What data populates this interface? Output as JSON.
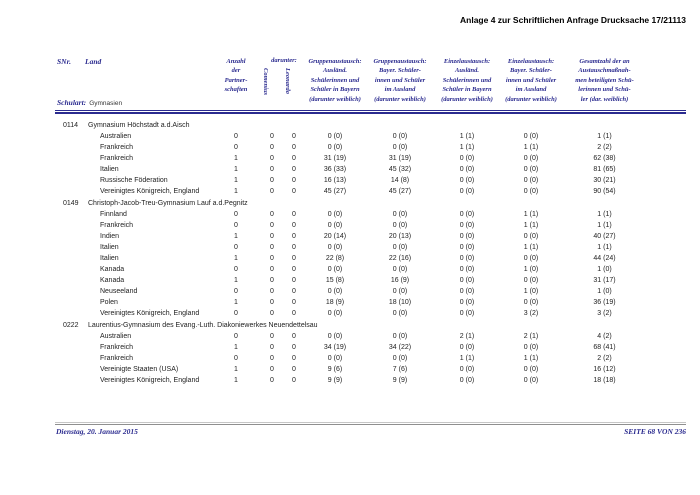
{
  "page": {
    "title": "Anlage 4 zur Schriftlichen Anfrage Drucksache 17/21113",
    "footer_left": "Dienstag, 20. Januar 2015",
    "footer_right": "SEITE 68 VON 236"
  },
  "colors": {
    "accent_navy": "#2b2b8f",
    "text": "#222222",
    "background": "#ffffff"
  },
  "table": {
    "schulart_label": "Schulart:",
    "schulart_value": "Gymnasien",
    "columns": {
      "snr": "SNr.",
      "land": "Land",
      "anzahl": "Anzahl\nder\nPartner-\nschaften",
      "darunter": "darunter:",
      "comenius": "Comenius",
      "leonardo": "Leonardo",
      "gruppe_bayern": "Gruppenaustausch:\nAusländ.\nSchülerinnen und\nSchüler in Bayern\n(darunter weiblich)",
      "gruppe_ausland": "Gruppenaustausch:\nBayer. Schüler-\ninnen und Schüler\nim Ausland\n(darunter weiblich)",
      "einzel_bayern": "Einzelaustausch:\nAusländ.\nSchülerinnen und\nSchüler in Bayern\n(darunter weiblich)",
      "einzel_ausland": "Einzelaustausch:\nBayer. Schüler-\ninnen und Schüler\nim Ausland\n(darunter weiblich)",
      "gesamt": "Gesamtzahl der an\nAustauschmaßnah-\nmen beteiligten Schü-\nlerinnen und Schü-\nler (dar. weiblich)"
    },
    "schools": [
      {
        "snr": "0114",
        "name": "Gymnasium Höchstadt a.d.Aisch",
        "rows": [
          [
            "Australien",
            "0",
            "0",
            "0",
            "0 (0)",
            "0 (0)",
            "1 (1)",
            "0 (0)",
            "1 (1)"
          ],
          [
            "Frankreich",
            "0",
            "0",
            "0",
            "0 (0)",
            "0 (0)",
            "1 (1)",
            "1 (1)",
            "2 (2)"
          ],
          [
            "Frankreich",
            "1",
            "0",
            "0",
            "31 (19)",
            "31 (19)",
            "0 (0)",
            "0 (0)",
            "62 (38)"
          ],
          [
            "Italien",
            "1",
            "0",
            "0",
            "36 (33)",
            "45 (32)",
            "0 (0)",
            "0 (0)",
            "81 (65)"
          ],
          [
            "Russische Föderation",
            "1",
            "0",
            "0",
            "16 (13)",
            "14 (8)",
            "0 (0)",
            "0 (0)",
            "30 (21)"
          ],
          [
            "Vereinigtes Königreich, England",
            "1",
            "0",
            "0",
            "45 (27)",
            "45 (27)",
            "0 (0)",
            "0 (0)",
            "90 (54)"
          ]
        ]
      },
      {
        "snr": "0149",
        "name": "Christoph-Jacob-Treu-Gymnasium Lauf a.d.Pegnitz",
        "rows": [
          [
            "Finnland",
            "0",
            "0",
            "0",
            "0 (0)",
            "0 (0)",
            "0 (0)",
            "1 (1)",
            "1 (1)"
          ],
          [
            "Frankreich",
            "0",
            "0",
            "0",
            "0 (0)",
            "0 (0)",
            "0 (0)",
            "1 (1)",
            "1 (1)"
          ],
          [
            "Indien",
            "1",
            "0",
            "0",
            "20 (14)",
            "20 (13)",
            "0 (0)",
            "0 (0)",
            "40 (27)"
          ],
          [
            "Italien",
            "0",
            "0",
            "0",
            "0 (0)",
            "0 (0)",
            "0 (0)",
            "1 (1)",
            "1 (1)"
          ],
          [
            "Italien",
            "1",
            "0",
            "0",
            "22 (8)",
            "22 (16)",
            "0 (0)",
            "0 (0)",
            "44 (24)"
          ],
          [
            "Kanada",
            "0",
            "0",
            "0",
            "0 (0)",
            "0 (0)",
            "0 (0)",
            "1 (0)",
            "1 (0)"
          ],
          [
            "Kanada",
            "1",
            "0",
            "0",
            "15 (8)",
            "16 (9)",
            "0 (0)",
            "0 (0)",
            "31 (17)"
          ],
          [
            "Neuseeland",
            "0",
            "0",
            "0",
            "0 (0)",
            "0 (0)",
            "0 (0)",
            "1 (0)",
            "1 (0)"
          ],
          [
            "Polen",
            "1",
            "0",
            "0",
            "18 (9)",
            "18 (10)",
            "0 (0)",
            "0 (0)",
            "36 (19)"
          ],
          [
            "Vereinigtes Königreich, England",
            "0",
            "0",
            "0",
            "0 (0)",
            "0 (0)",
            "0 (0)",
            "3 (2)",
            "3 (2)"
          ]
        ]
      },
      {
        "snr": "0222",
        "name": "Laurentius-Gymnasium des Evang.-Luth. Diakoniewerkes Neuendettelsau",
        "rows": [
          [
            "Australien",
            "0",
            "0",
            "0",
            "0 (0)",
            "0 (0)",
            "2 (1)",
            "2 (1)",
            "4 (2)"
          ],
          [
            "Frankreich",
            "1",
            "0",
            "0",
            "34 (19)",
            "34 (22)",
            "0 (0)",
            "0 (0)",
            "68 (41)"
          ],
          [
            "Frankreich",
            "0",
            "0",
            "0",
            "0 (0)",
            "0 (0)",
            "1 (1)",
            "1 (1)",
            "2 (2)"
          ],
          [
            "Vereinigte Staaten (USA)",
            "1",
            "0",
            "0",
            "9 (6)",
            "7 (6)",
            "0 (0)",
            "0 (0)",
            "16 (12)"
          ],
          [
            "Vereinigtes Königreich, England",
            "1",
            "0",
            "0",
            "9 (9)",
            "9 (9)",
            "0 (0)",
            "0 (0)",
            "18 (18)"
          ]
        ]
      }
    ]
  }
}
